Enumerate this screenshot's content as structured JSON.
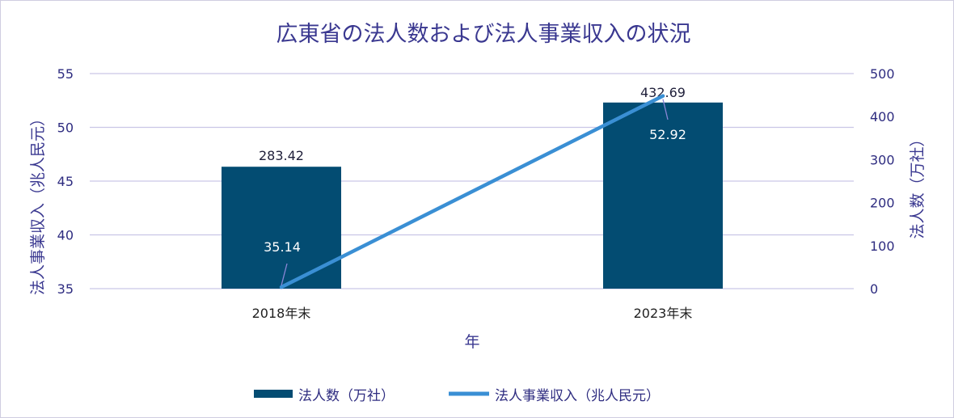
{
  "chart_data": {
    "type": "bar+line",
    "title": "広東省の法人数および法人事業収入の状況",
    "xlabel": "年",
    "categories": [
      "2018年末",
      "2023年末"
    ],
    "y_left": {
      "label": "法人事業収入（兆人民元）",
      "lim": [
        35,
        55
      ],
      "ticks": [
        35,
        40,
        45,
        50,
        55
      ]
    },
    "y_right": {
      "label": "法人数（万社）",
      "lim": [
        0,
        500
      ],
      "ticks": [
        0,
        100,
        200,
        300,
        400,
        500
      ]
    },
    "series": [
      {
        "name": "法人数（万社）",
        "kind": "bar",
        "axis": "right",
        "values": [
          283.42,
          432.69
        ],
        "labels": [
          "283.42",
          "432.69"
        ]
      },
      {
        "name": "法人事業収入（兆人民元）",
        "kind": "line",
        "axis": "left",
        "values": [
          35.14,
          52.92
        ],
        "labels": [
          "35.14",
          "52.92"
        ]
      }
    ],
    "grid": true,
    "legend_position": "bottom"
  },
  "colors": {
    "bar": "#034c72",
    "line": "#3a8fd4",
    "text": "#3a3890",
    "grid": "#c9c6e6"
  }
}
